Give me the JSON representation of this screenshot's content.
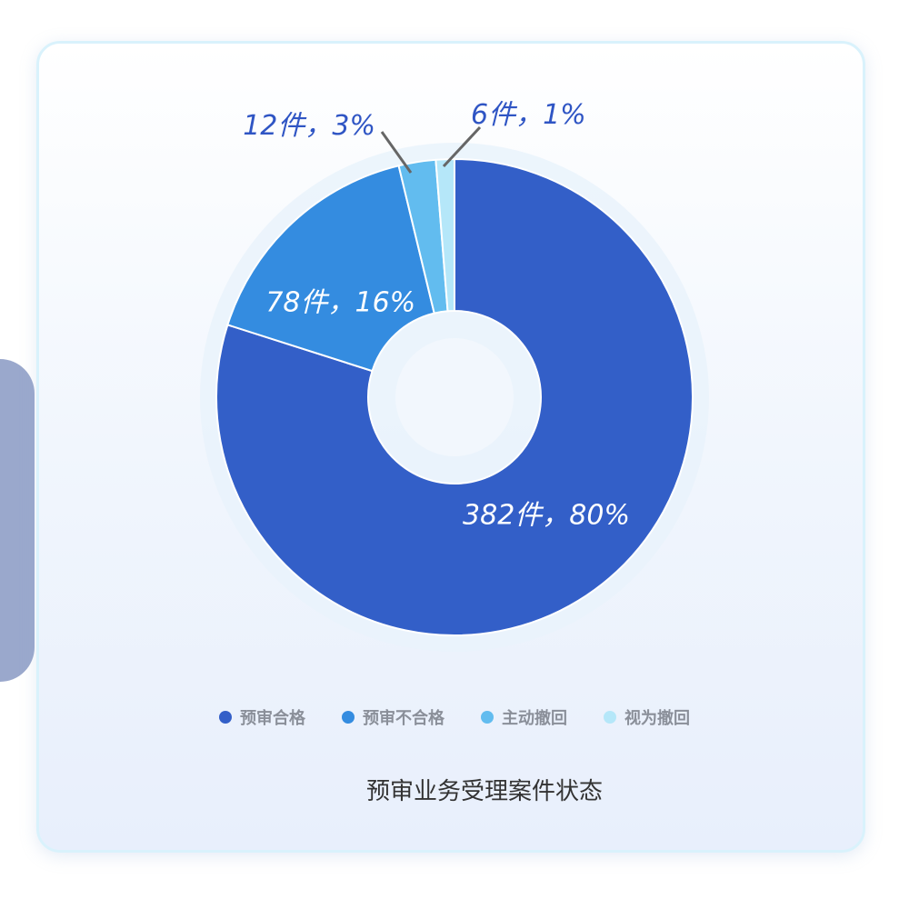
{
  "chart_data": {
    "type": "pie",
    "variant": "donut",
    "title": "预审业务受理案件状态",
    "legend_position": "bottom",
    "unit": "件",
    "slices": [
      {
        "name": "预审合格",
        "value": 382,
        "percent": 80,
        "label": "382件，80%",
        "color": "#335fc8"
      },
      {
        "name": "预审不合格",
        "value": 78,
        "percent": 16,
        "label": "78件，16%",
        "color": "#348ce0"
      },
      {
        "name": "主动撤回",
        "value": 12,
        "percent": 3,
        "label": "12件，3%",
        "color": "#62bcef"
      },
      {
        "name": "视为撤回",
        "value": 6,
        "percent": 1,
        "label": "6件，1%",
        "color": "#b5e7f9"
      }
    ]
  }
}
